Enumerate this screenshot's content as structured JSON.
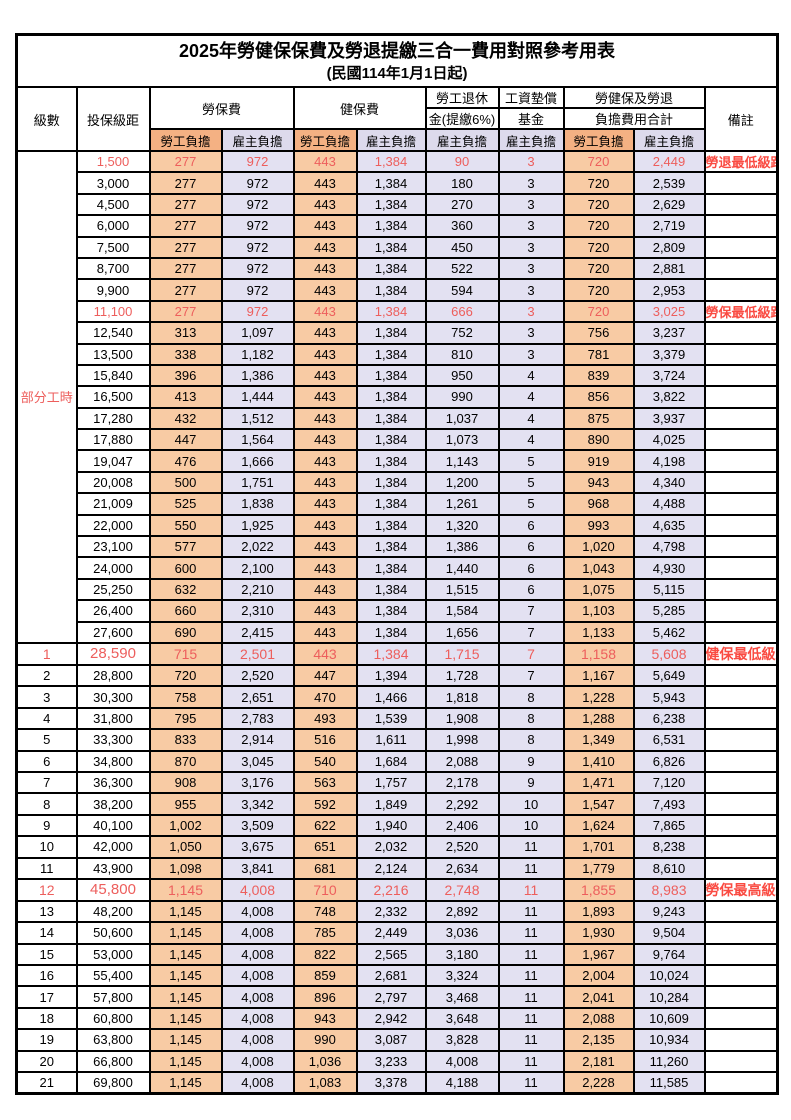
{
  "title": "2025年勞健保保費及勞退提繳三合一費用對照參考用表",
  "subtitle": "(民國114年1月1日起)",
  "header": {
    "level": "級數",
    "bracket": "投保級距",
    "labor_ins": "勞保費",
    "health_ins": "健保費",
    "pension_line1": "勞工退休",
    "pension_line2": "金(提繳6%)",
    "wage_fund_line1": "工資墊償",
    "wage_fund_line2": "基金",
    "total_line1": "勞健保及勞退",
    "total_line2": "負擔費用合計",
    "employee": "勞工負擔",
    "employer": "雇主負擔",
    "remark": "備註"
  },
  "groups": {
    "part_time_label": "部分工時",
    "part_time_span": 23
  },
  "colors": {
    "employee_data_bg": "#F8CBA4",
    "employer_data_bg": "#E3E1F2",
    "employee_header_bg": "#F4B183",
    "employer_header_bg": "#DDDAEC",
    "milestone_text": "#ED5E5C",
    "note_text": "#FA4B42",
    "border": "#000000"
  },
  "column_keys": [
    "li_emp",
    "li_er",
    "hi_emp",
    "hi_er",
    "pension",
    "fund",
    "tot_emp",
    "tot_er"
  ],
  "rows": [
    {
      "l": "",
      "b": "1,500",
      "v": [
        "277",
        "972",
        "443",
        "1,384",
        "90",
        "3",
        "720",
        "2,449"
      ],
      "n": "勞退最低級距",
      "r": true,
      "big": false
    },
    {
      "l": "",
      "b": "3,000",
      "v": [
        "277",
        "972",
        "443",
        "1,384",
        "180",
        "3",
        "720",
        "2,539"
      ],
      "n": "",
      "r": false,
      "big": false
    },
    {
      "l": "",
      "b": "4,500",
      "v": [
        "277",
        "972",
        "443",
        "1,384",
        "270",
        "3",
        "720",
        "2,629"
      ],
      "n": "",
      "r": false,
      "big": false
    },
    {
      "l": "",
      "b": "6,000",
      "v": [
        "277",
        "972",
        "443",
        "1,384",
        "360",
        "3",
        "720",
        "2,719"
      ],
      "n": "",
      "r": false,
      "big": false
    },
    {
      "l": "",
      "b": "7,500",
      "v": [
        "277",
        "972",
        "443",
        "1,384",
        "450",
        "3",
        "720",
        "2,809"
      ],
      "n": "",
      "r": false,
      "big": false
    },
    {
      "l": "",
      "b": "8,700",
      "v": [
        "277",
        "972",
        "443",
        "1,384",
        "522",
        "3",
        "720",
        "2,881"
      ],
      "n": "",
      "r": false,
      "big": false
    },
    {
      "l": "",
      "b": "9,900",
      "v": [
        "277",
        "972",
        "443",
        "1,384",
        "594",
        "3",
        "720",
        "2,953"
      ],
      "n": "",
      "r": false,
      "big": false
    },
    {
      "l": "",
      "b": "11,100",
      "v": [
        "277",
        "972",
        "443",
        "1,384",
        "666",
        "3",
        "720",
        "3,025"
      ],
      "n": "勞保最低級距",
      "r": true,
      "big": false
    },
    {
      "l": "",
      "b": "12,540",
      "v": [
        "313",
        "1,097",
        "443",
        "1,384",
        "752",
        "3",
        "756",
        "3,237"
      ],
      "n": "",
      "r": false,
      "big": false
    },
    {
      "l": "",
      "b": "13,500",
      "v": [
        "338",
        "1,182",
        "443",
        "1,384",
        "810",
        "3",
        "781",
        "3,379"
      ],
      "n": "",
      "r": false,
      "big": false
    },
    {
      "l": "",
      "b": "15,840",
      "v": [
        "396",
        "1,386",
        "443",
        "1,384",
        "950",
        "4",
        "839",
        "3,724"
      ],
      "n": "",
      "r": false,
      "big": false
    },
    {
      "l": "",
      "b": "16,500",
      "v": [
        "413",
        "1,444",
        "443",
        "1,384",
        "990",
        "4",
        "856",
        "3,822"
      ],
      "n": "",
      "r": false,
      "big": false
    },
    {
      "l": "",
      "b": "17,280",
      "v": [
        "432",
        "1,512",
        "443",
        "1,384",
        "1,037",
        "4",
        "875",
        "3,937"
      ],
      "n": "",
      "r": false,
      "big": false
    },
    {
      "l": "",
      "b": "17,880",
      "v": [
        "447",
        "1,564",
        "443",
        "1,384",
        "1,073",
        "4",
        "890",
        "4,025"
      ],
      "n": "",
      "r": false,
      "big": false
    },
    {
      "l": "",
      "b": "19,047",
      "v": [
        "476",
        "1,666",
        "443",
        "1,384",
        "1,143",
        "5",
        "919",
        "4,198"
      ],
      "n": "",
      "r": false,
      "big": false
    },
    {
      "l": "",
      "b": "20,008",
      "v": [
        "500",
        "1,751",
        "443",
        "1,384",
        "1,200",
        "5",
        "943",
        "4,340"
      ],
      "n": "",
      "r": false,
      "big": false
    },
    {
      "l": "",
      "b": "21,009",
      "v": [
        "525",
        "1,838",
        "443",
        "1,384",
        "1,261",
        "5",
        "968",
        "4,488"
      ],
      "n": "",
      "r": false,
      "big": false
    },
    {
      "l": "",
      "b": "22,000",
      "v": [
        "550",
        "1,925",
        "443",
        "1,384",
        "1,320",
        "6",
        "993",
        "4,635"
      ],
      "n": "",
      "r": false,
      "big": false
    },
    {
      "l": "",
      "b": "23,100",
      "v": [
        "577",
        "2,022",
        "443",
        "1,384",
        "1,386",
        "6",
        "1,020",
        "4,798"
      ],
      "n": "",
      "r": false,
      "big": false
    },
    {
      "l": "",
      "b": "24,000",
      "v": [
        "600",
        "2,100",
        "443",
        "1,384",
        "1,440",
        "6",
        "1,043",
        "4,930"
      ],
      "n": "",
      "r": false,
      "big": false
    },
    {
      "l": "",
      "b": "25,250",
      "v": [
        "632",
        "2,210",
        "443",
        "1,384",
        "1,515",
        "6",
        "1,075",
        "5,115"
      ],
      "n": "",
      "r": false,
      "big": false
    },
    {
      "l": "",
      "b": "26,400",
      "v": [
        "660",
        "2,310",
        "443",
        "1,384",
        "1,584",
        "7",
        "1,103",
        "5,285"
      ],
      "n": "",
      "r": false,
      "big": false
    },
    {
      "l": "",
      "b": "27,600",
      "v": [
        "690",
        "2,415",
        "443",
        "1,384",
        "1,656",
        "7",
        "1,133",
        "5,462"
      ],
      "n": "",
      "r": false,
      "big": false
    },
    {
      "l": "1",
      "b": "28,590",
      "v": [
        "715",
        "2,501",
        "443",
        "1,384",
        "1,715",
        "7",
        "1,158",
        "5,608"
      ],
      "n": "健保最低級距",
      "r": true,
      "big": true
    },
    {
      "l": "2",
      "b": "28,800",
      "v": [
        "720",
        "2,520",
        "447",
        "1,394",
        "1,728",
        "7",
        "1,167",
        "5,649"
      ],
      "n": "",
      "r": false,
      "big": false
    },
    {
      "l": "3",
      "b": "30,300",
      "v": [
        "758",
        "2,651",
        "470",
        "1,466",
        "1,818",
        "8",
        "1,228",
        "5,943"
      ],
      "n": "",
      "r": false,
      "big": false
    },
    {
      "l": "4",
      "b": "31,800",
      "v": [
        "795",
        "2,783",
        "493",
        "1,539",
        "1,908",
        "8",
        "1,288",
        "6,238"
      ],
      "n": "",
      "r": false,
      "big": false
    },
    {
      "l": "5",
      "b": "33,300",
      "v": [
        "833",
        "2,914",
        "516",
        "1,611",
        "1,998",
        "8",
        "1,349",
        "6,531"
      ],
      "n": "",
      "r": false,
      "big": false
    },
    {
      "l": "6",
      "b": "34,800",
      "v": [
        "870",
        "3,045",
        "540",
        "1,684",
        "2,088",
        "9",
        "1,410",
        "6,826"
      ],
      "n": "",
      "r": false,
      "big": false
    },
    {
      "l": "7",
      "b": "36,300",
      "v": [
        "908",
        "3,176",
        "563",
        "1,757",
        "2,178",
        "9",
        "1,471",
        "7,120"
      ],
      "n": "",
      "r": false,
      "big": false
    },
    {
      "l": "8",
      "b": "38,200",
      "v": [
        "955",
        "3,342",
        "592",
        "1,849",
        "2,292",
        "10",
        "1,547",
        "7,493"
      ],
      "n": "",
      "r": false,
      "big": false
    },
    {
      "l": "9",
      "b": "40,100",
      "v": [
        "1,002",
        "3,509",
        "622",
        "1,940",
        "2,406",
        "10",
        "1,624",
        "7,865"
      ],
      "n": "",
      "r": false,
      "big": false
    },
    {
      "l": "10",
      "b": "42,000",
      "v": [
        "1,050",
        "3,675",
        "651",
        "2,032",
        "2,520",
        "11",
        "1,701",
        "8,238"
      ],
      "n": "",
      "r": false,
      "big": false
    },
    {
      "l": "11",
      "b": "43,900",
      "v": [
        "1,098",
        "3,841",
        "681",
        "2,124",
        "2,634",
        "11",
        "1,779",
        "8,610"
      ],
      "n": "",
      "r": false,
      "big": false
    },
    {
      "l": "12",
      "b": "45,800",
      "v": [
        "1,145",
        "4,008",
        "710",
        "2,216",
        "2,748",
        "11",
        "1,855",
        "8,983"
      ],
      "n": "勞保最高級距",
      "r": true,
      "big": true
    },
    {
      "l": "13",
      "b": "48,200",
      "v": [
        "1,145",
        "4,008",
        "748",
        "2,332",
        "2,892",
        "11",
        "1,893",
        "9,243"
      ],
      "n": "",
      "r": false,
      "big": false
    },
    {
      "l": "14",
      "b": "50,600",
      "v": [
        "1,145",
        "4,008",
        "785",
        "2,449",
        "3,036",
        "11",
        "1,930",
        "9,504"
      ],
      "n": "",
      "r": false,
      "big": false
    },
    {
      "l": "15",
      "b": "53,000",
      "v": [
        "1,145",
        "4,008",
        "822",
        "2,565",
        "3,180",
        "11",
        "1,967",
        "9,764"
      ],
      "n": "",
      "r": false,
      "big": false
    },
    {
      "l": "16",
      "b": "55,400",
      "v": [
        "1,145",
        "4,008",
        "859",
        "2,681",
        "3,324",
        "11",
        "2,004",
        "10,024"
      ],
      "n": "",
      "r": false,
      "big": false
    },
    {
      "l": "17",
      "b": "57,800",
      "v": [
        "1,145",
        "4,008",
        "896",
        "2,797",
        "3,468",
        "11",
        "2,041",
        "10,284"
      ],
      "n": "",
      "r": false,
      "big": false
    },
    {
      "l": "18",
      "b": "60,800",
      "v": [
        "1,145",
        "4,008",
        "943",
        "2,942",
        "3,648",
        "11",
        "2,088",
        "10,609"
      ],
      "n": "",
      "r": false,
      "big": false
    },
    {
      "l": "19",
      "b": "63,800",
      "v": [
        "1,145",
        "4,008",
        "990",
        "3,087",
        "3,828",
        "11",
        "2,135",
        "10,934"
      ],
      "n": "",
      "r": false,
      "big": false
    },
    {
      "l": "20",
      "b": "66,800",
      "v": [
        "1,145",
        "4,008",
        "1,036",
        "3,233",
        "4,008",
        "11",
        "2,181",
        "11,260"
      ],
      "n": "",
      "r": false,
      "big": false
    },
    {
      "l": "21",
      "b": "69,800",
      "v": [
        "1,145",
        "4,008",
        "1,083",
        "3,378",
        "4,188",
        "11",
        "2,228",
        "11,585"
      ],
      "n": "",
      "r": false,
      "big": false
    }
  ]
}
